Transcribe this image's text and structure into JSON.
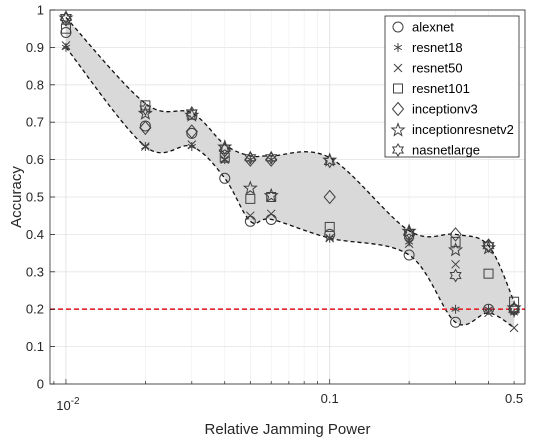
{
  "chart_data": {
    "type": "scatter",
    "xlabel": "Relative Jamming Power",
    "ylabel": "Accuracy",
    "xscale": "log",
    "xlim": [
      0.0087,
      0.55
    ],
    "ylim": [
      0,
      1
    ],
    "xticks": [
      {
        "value": 0.01,
        "base": "10",
        "exp": "-2"
      },
      {
        "value": 0.1,
        "label": "0.1"
      },
      {
        "value": 0.5,
        "label": "0.5"
      }
    ],
    "yticks": [
      0,
      0.1,
      0.2,
      0.3,
      0.4,
      0.5,
      0.6,
      0.7,
      0.8,
      0.9,
      1
    ],
    "grid": true,
    "legend_position": "top-right",
    "x": [
      0.01,
      0.02,
      0.03,
      0.04,
      0.05,
      0.06,
      0.1,
      0.2,
      0.3,
      0.4,
      0.5
    ],
    "series": [
      {
        "name": "alexnet",
        "marker": "circle",
        "values": [
          0.94,
          0.69,
          0.67,
          0.55,
          0.435,
          0.44,
          0.4,
          0.345,
          0.165,
          0.2,
          0.2
        ]
      },
      {
        "name": "resnet18",
        "marker": "asterisk",
        "values": [
          0.9,
          0.635,
          0.635,
          0.6,
          0.6,
          0.6,
          0.39,
          0.38,
          0.2,
          0.2,
          0.19
        ]
      },
      {
        "name": "resnet50",
        "marker": "x",
        "values": [
          0.905,
          0.635,
          0.64,
          0.6,
          0.45,
          0.455,
          0.39,
          0.375,
          0.32,
          0.19,
          0.15
        ]
      },
      {
        "name": "resnet101",
        "marker": "square",
        "values": [
          0.95,
          0.745,
          0.72,
          0.605,
          0.495,
          0.5,
          0.42,
          0.4,
          0.38,
          0.295,
          0.22
        ]
      },
      {
        "name": "inceptionv3",
        "marker": "diamond",
        "values": [
          0.975,
          0.685,
          0.675,
          0.625,
          0.6,
          0.6,
          0.5,
          0.4,
          0.4,
          0.37,
          0.2
        ]
      },
      {
        "name": "inceptionresnetv2",
        "marker": "pentagram",
        "values": [
          0.98,
          0.725,
          0.72,
          0.635,
          0.525,
          0.505,
          0.6,
          0.41,
          0.36,
          0.365,
          0.205
        ]
      },
      {
        "name": "nasnetlarge",
        "marker": "hexagram",
        "values": [
          0.98,
          0.735,
          0.725,
          0.63,
          0.605,
          0.605,
          0.595,
          0.405,
          0.29,
          0.37,
          0.2
        ]
      }
    ],
    "envelope_upper": [
      0.98,
      0.75,
      0.725,
      0.64,
      0.61,
      0.61,
      0.605,
      0.41,
      0.4,
      0.37,
      0.22
    ],
    "envelope_lower": [
      0.9,
      0.635,
      0.635,
      0.55,
      0.435,
      0.44,
      0.39,
      0.345,
      0.165,
      0.19,
      0.15
    ],
    "reference_line": {
      "y": 0.2,
      "color": "#e8242c",
      "style": "dashed"
    },
    "band_fill_color": "#d9d9d9",
    "marker_color": "#404040"
  }
}
